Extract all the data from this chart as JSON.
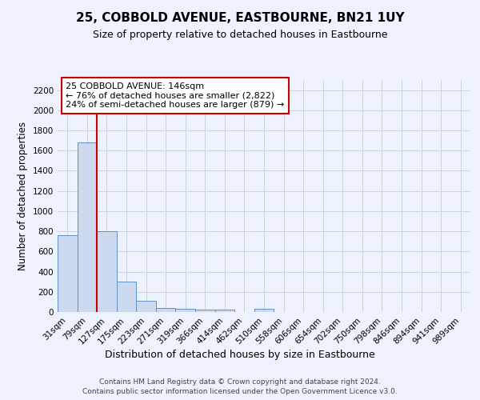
{
  "title": "25, COBBOLD AVENUE, EASTBOURNE, BN21 1UY",
  "subtitle": "Size of property relative to detached houses in Eastbourne",
  "xlabel": "Distribution of detached houses by size in Eastbourne",
  "ylabel": "Number of detached properties",
  "categories": [
    "31sqm",
    "79sqm",
    "127sqm",
    "175sqm",
    "223sqm",
    "271sqm",
    "319sqm",
    "366sqm",
    "414sqm",
    "462sqm",
    "510sqm",
    "558sqm",
    "606sqm",
    "654sqm",
    "702sqm",
    "750sqm",
    "798sqm",
    "846sqm",
    "894sqm",
    "941sqm",
    "989sqm"
  ],
  "values": [
    760,
    1680,
    800,
    300,
    110,
    40,
    35,
    22,
    20,
    0,
    28,
    0,
    0,
    0,
    0,
    0,
    0,
    0,
    0,
    0,
    0
  ],
  "bar_color": "#ccd9ee",
  "bar_edge_color": "#6090c8",
  "vline_x": 1.5,
  "vline_color": "#cc0000",
  "annotation_line1": "25 COBBOLD AVENUE: 146sqm",
  "annotation_line2": "← 76% of detached houses are smaller (2,822)",
  "annotation_line3": "24% of semi-detached houses are larger (879) →",
  "annotation_box_facecolor": "#ffffff",
  "annotation_box_edgecolor": "#cc0000",
  "ylim": [
    0,
    2300
  ],
  "yticks": [
    0,
    200,
    400,
    600,
    800,
    1000,
    1200,
    1400,
    1600,
    1800,
    2000,
    2200
  ],
  "grid_color": "#c8d4e8",
  "background_color": "#edf2fc",
  "footer_line1": "Contains HM Land Registry data © Crown copyright and database right 2024.",
  "footer_line2": "Contains public sector information licensed under the Open Government Licence v3.0.",
  "title_fontsize": 11,
  "subtitle_fontsize": 9,
  "ylabel_fontsize": 8.5,
  "xlabel_fontsize": 9,
  "tick_fontsize": 7.5,
  "annotation_fontsize": 8,
  "footer_fontsize": 6.5
}
